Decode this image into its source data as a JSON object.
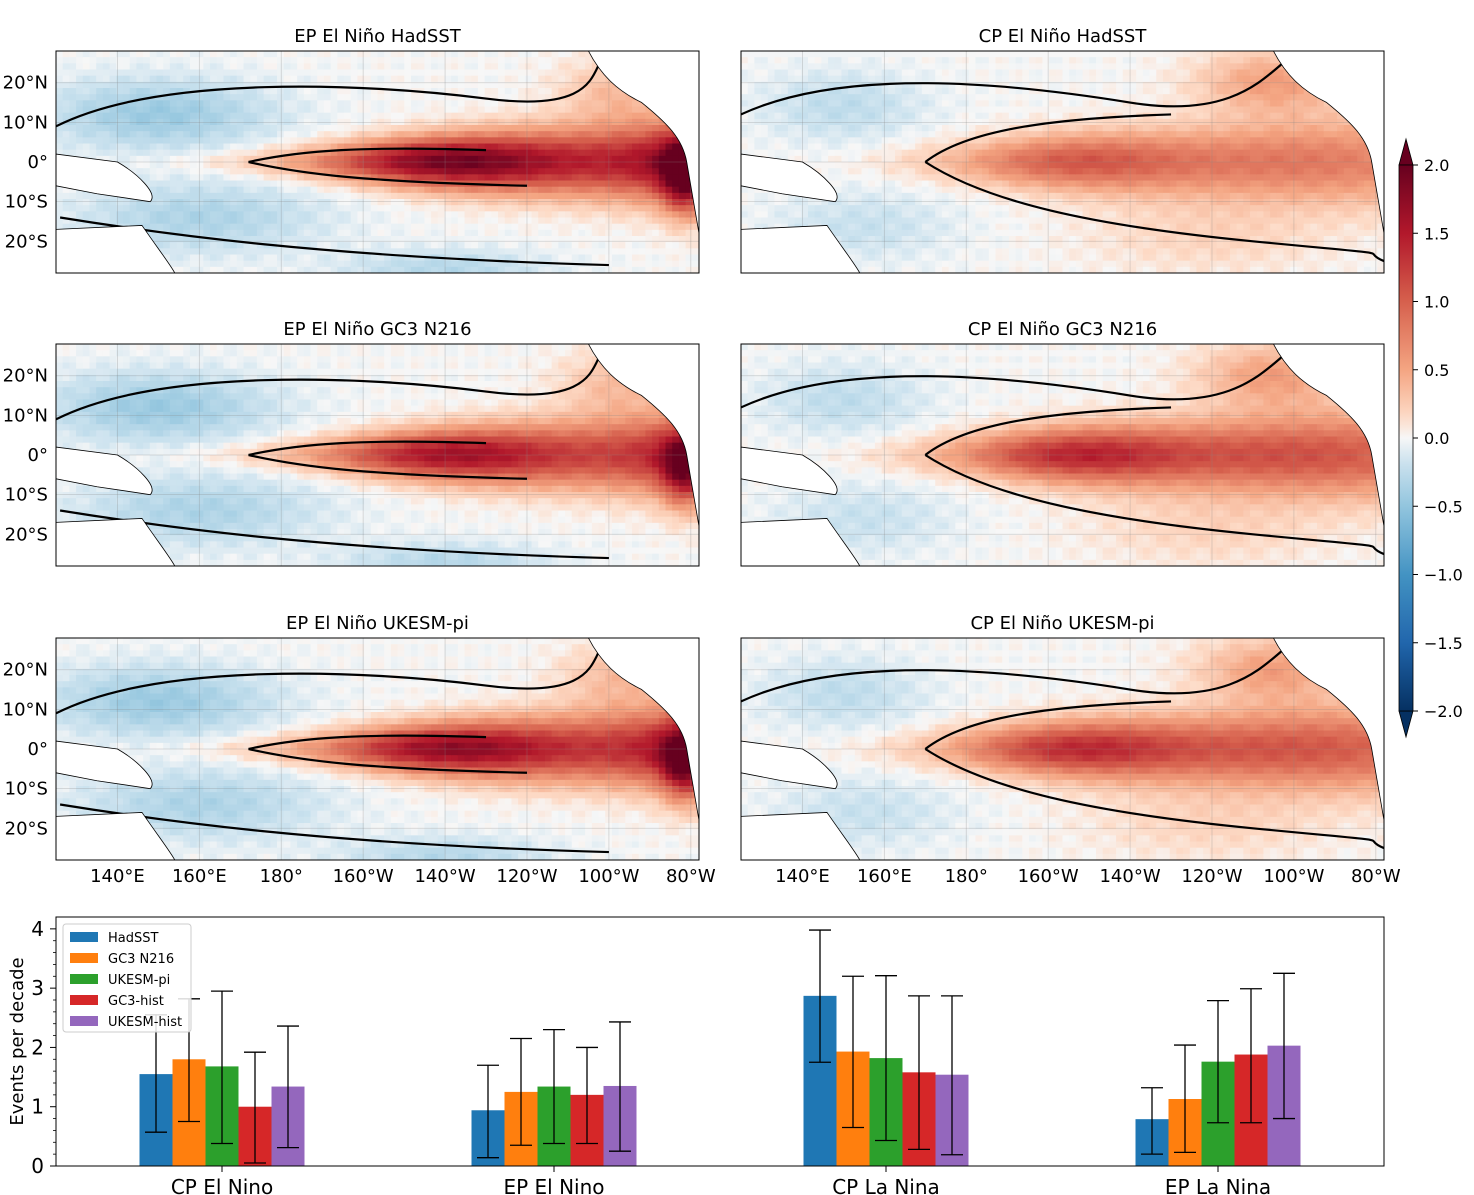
{
  "chart_data": [
    {
      "type": "heatmap",
      "panels": [
        {
          "title": "EP El Niño HadSST",
          "dataset": "HadSST",
          "type": "EP",
          "peak": 2.1,
          "shape": "ep"
        },
        {
          "title": "CP El Niño HadSST",
          "dataset": "HadSST",
          "type": "CP",
          "peak": 1.15,
          "shape": "cp"
        },
        {
          "title": "EP El Niño GC3 N216",
          "dataset": "GC3 N216",
          "type": "EP",
          "peak": 1.75,
          "shape": "ep"
        },
        {
          "title": "CP El Niño GC3 N216",
          "dataset": "GC3 N216",
          "type": "CP",
          "peak": 1.55,
          "shape": "cp"
        },
        {
          "title": "EP El Niño UKESM-pi",
          "dataset": "UKESM-pi",
          "type": "EP",
          "peak": 1.9,
          "shape": "ep"
        },
        {
          "title": "CP El Niño UKESM-pi",
          "dataset": "UKESM-pi",
          "type": "CP",
          "peak": 1.5,
          "shape": "cp"
        }
      ],
      "lat_ticks": [
        "20°N",
        "10°N",
        "0°",
        "10°S",
        "20°S"
      ],
      "lat_values": [
        20,
        10,
        0,
        -10,
        -20
      ],
      "lat_range": [
        -28,
        28
      ],
      "lon_ticks": [
        "140°E",
        "160°E",
        "180°",
        "160°W",
        "140°W",
        "120°W",
        "100°W",
        "80°W"
      ],
      "lon_values": [
        140,
        160,
        180,
        200,
        220,
        240,
        260,
        280
      ],
      "lon_range": [
        125,
        282
      ],
      "colorbar": {
        "min": -2.0,
        "max": 2.0,
        "tick_labels": [
          "2.0",
          "1.5",
          "1.0",
          "0.5",
          "0.0",
          "−0.5",
          "−1.0",
          "−1.5",
          "−2.0"
        ],
        "tick_values": [
          2.0,
          1.5,
          1.0,
          0.5,
          0.0,
          -0.5,
          -1.0,
          -1.5,
          -2.0
        ],
        "colormap": "RdBu_r",
        "extend": "both",
        "levels": 40
      },
      "grid": true,
      "zero_contour": true
    },
    {
      "type": "bar",
      "categories": [
        "CP El Nino",
        "EP El Nino",
        "CP La Nina",
        "EP La Nina"
      ],
      "ylabel": "Events per decade",
      "xlabel": "",
      "ylim": [
        0,
        4.2
      ],
      "yticks": [
        0,
        1,
        2,
        3,
        4
      ],
      "legend_position": "top-left",
      "series": [
        {
          "name": "HadSST",
          "color": "#1f77b4",
          "values": [
            1.55,
            0.94,
            2.87,
            0.79
          ],
          "err_low": [
            0.57,
            0.14,
            1.75,
            0.2
          ],
          "err_high": [
            2.55,
            1.7,
            3.98,
            1.32
          ]
        },
        {
          "name": "GC3 N216",
          "color": "#ff7f0e",
          "values": [
            1.8,
            1.25,
            1.93,
            1.13
          ],
          "err_low": [
            0.75,
            0.35,
            0.65,
            0.23
          ],
          "err_high": [
            2.82,
            2.15,
            3.2,
            2.04
          ]
        },
        {
          "name": "UKESM-pi",
          "color": "#2ca02c",
          "values": [
            1.68,
            1.34,
            1.82,
            1.76
          ],
          "err_low": [
            0.38,
            0.38,
            0.43,
            0.73
          ],
          "err_high": [
            2.95,
            2.3,
            3.21,
            2.79
          ]
        },
        {
          "name": "GC3-hist",
          "color": "#d62728",
          "values": [
            1.0,
            1.2,
            1.58,
            1.88
          ],
          "err_low": [
            0.05,
            0.38,
            0.28,
            0.73
          ],
          "err_high": [
            1.92,
            2.0,
            2.87,
            2.99
          ]
        },
        {
          "name": "UKESM-hist",
          "color": "#9467bd",
          "values": [
            1.34,
            1.35,
            1.54,
            2.03
          ],
          "err_low": [
            0.31,
            0.25,
            0.19,
            0.8
          ],
          "err_high": [
            2.36,
            2.43,
            2.87,
            3.25
          ]
        }
      ]
    }
  ]
}
